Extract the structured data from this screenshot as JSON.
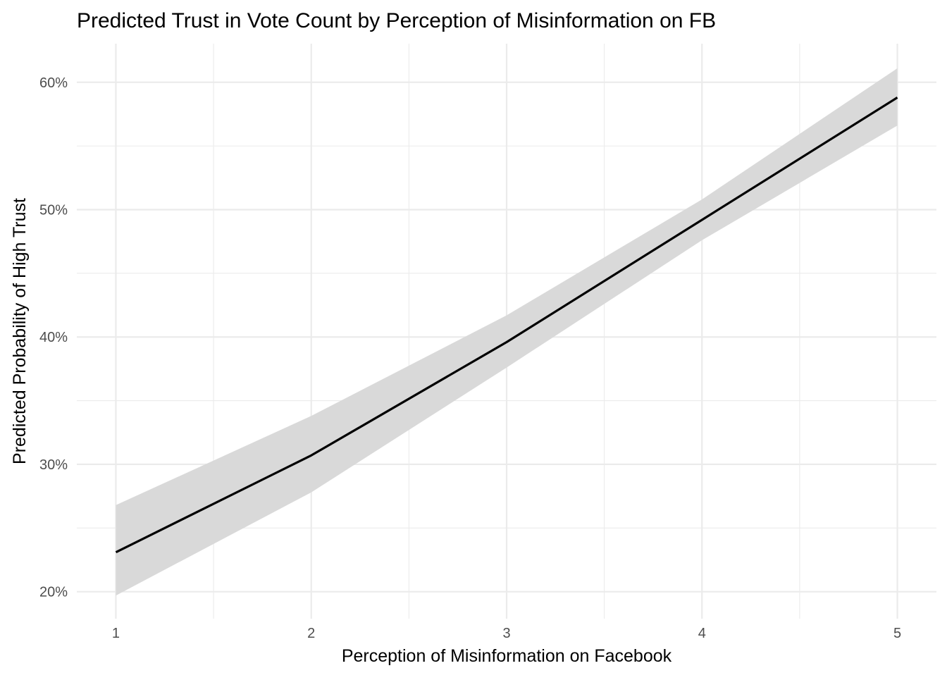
{
  "chart_data": {
    "type": "line",
    "title": "Predicted Trust in Vote Count by Perception of Misinformation on FB",
    "xlabel": "Perception of Misinformation on Facebook",
    "ylabel": "Predicted Probability of High Trust",
    "x": [
      1,
      2,
      3,
      4,
      5
    ],
    "x_tick_labels": [
      "1",
      "2",
      "3",
      "4",
      "5"
    ],
    "xlim": [
      0.8,
      5.2
    ],
    "ylim": [
      0.1788,
      0.6303
    ],
    "y_ticks": [
      0.2,
      0.3,
      0.4,
      0.5,
      0.6
    ],
    "y_tick_labels": [
      "20%",
      "30%",
      "40%",
      "50%",
      "60%"
    ],
    "grid": true,
    "series": [
      {
        "values": [
          0.231,
          0.307,
          0.396,
          0.492,
          0.588
        ],
        "ci_lower": [
          0.197,
          0.278,
          0.376,
          0.476,
          0.566
        ],
        "ci_upper": [
          0.268,
          0.338,
          0.417,
          0.508,
          0.611
        ],
        "line_color": "#000000",
        "ribbon_color": "#d9d9d9"
      }
    ]
  }
}
